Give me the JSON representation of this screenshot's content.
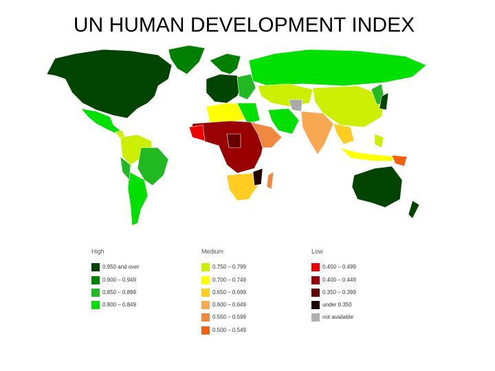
{
  "title": "UN HUMAN DEVELOPMENT INDEX",
  "legend": {
    "groups": [
      {
        "heading": "High",
        "items": [
          {
            "label": "0.950 and over",
            "color": "#004400"
          },
          {
            "label": "0.900 – 0.949",
            "color": "#008000"
          },
          {
            "label": "0.850 – 0.899",
            "color": "#22b822"
          },
          {
            "label": "0.800 – 0.849",
            "color": "#00e000"
          }
        ]
      },
      {
        "heading": "Medium",
        "items": [
          {
            "label": "0.750 – 0.799",
            "color": "#ccee00"
          },
          {
            "label": "0.700 – 0.749",
            "color": "#ffff00"
          },
          {
            "label": "0.650 – 0.699",
            "color": "#ffcc22"
          },
          {
            "label": "0.600 – 0.649",
            "color": "#f8a850"
          },
          {
            "label": "0.550 – 0.599",
            "color": "#f08840"
          },
          {
            "label": "0.500 – 0.549",
            "color": "#f06010"
          }
        ]
      },
      {
        "heading": "Low",
        "items": [
          {
            "label": "0.450 – 0.499",
            "color": "#ee0000"
          },
          {
            "label": "0.400 – 0.449",
            "color": "#990000"
          },
          {
            "label": "0.350 – 0.399",
            "color": "#660000"
          },
          {
            "label": "under 0.350",
            "color": "#220000"
          },
          {
            "label": "not available",
            "color": "#b0b0b0"
          }
        ]
      }
    ]
  }
}
